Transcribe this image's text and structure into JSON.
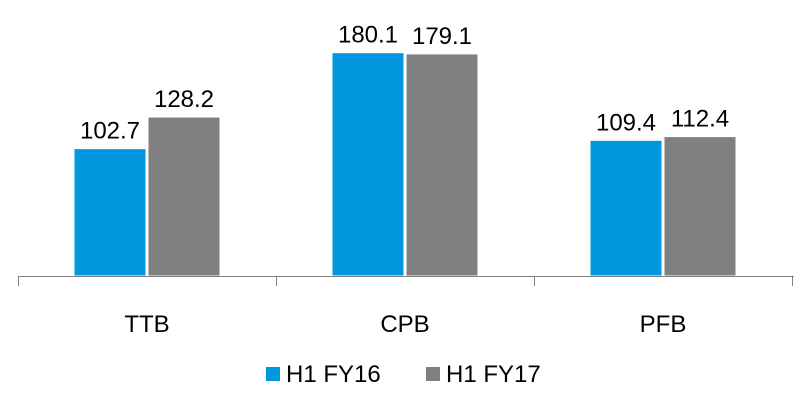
{
  "chart_data": {
    "type": "bar",
    "categories": [
      "TTB",
      "CPB",
      "PFB"
    ],
    "series": [
      {
        "name": "H1 FY16",
        "color": "#0097DF",
        "values": [
          102.7,
          180.1,
          109.4
        ],
        "labels": [
          "102.7",
          "180.1",
          "109.4"
        ]
      },
      {
        "name": "H1 FY17",
        "color": "#808080",
        "values": [
          128.2,
          179.1,
          112.4
        ],
        "labels": [
          "128.2",
          "179.1",
          "112.4"
        ]
      }
    ],
    "title": "",
    "xlabel": "",
    "ylabel": "",
    "ylim": [
      0,
      200
    ],
    "grid": false,
    "legend": "bottom"
  }
}
